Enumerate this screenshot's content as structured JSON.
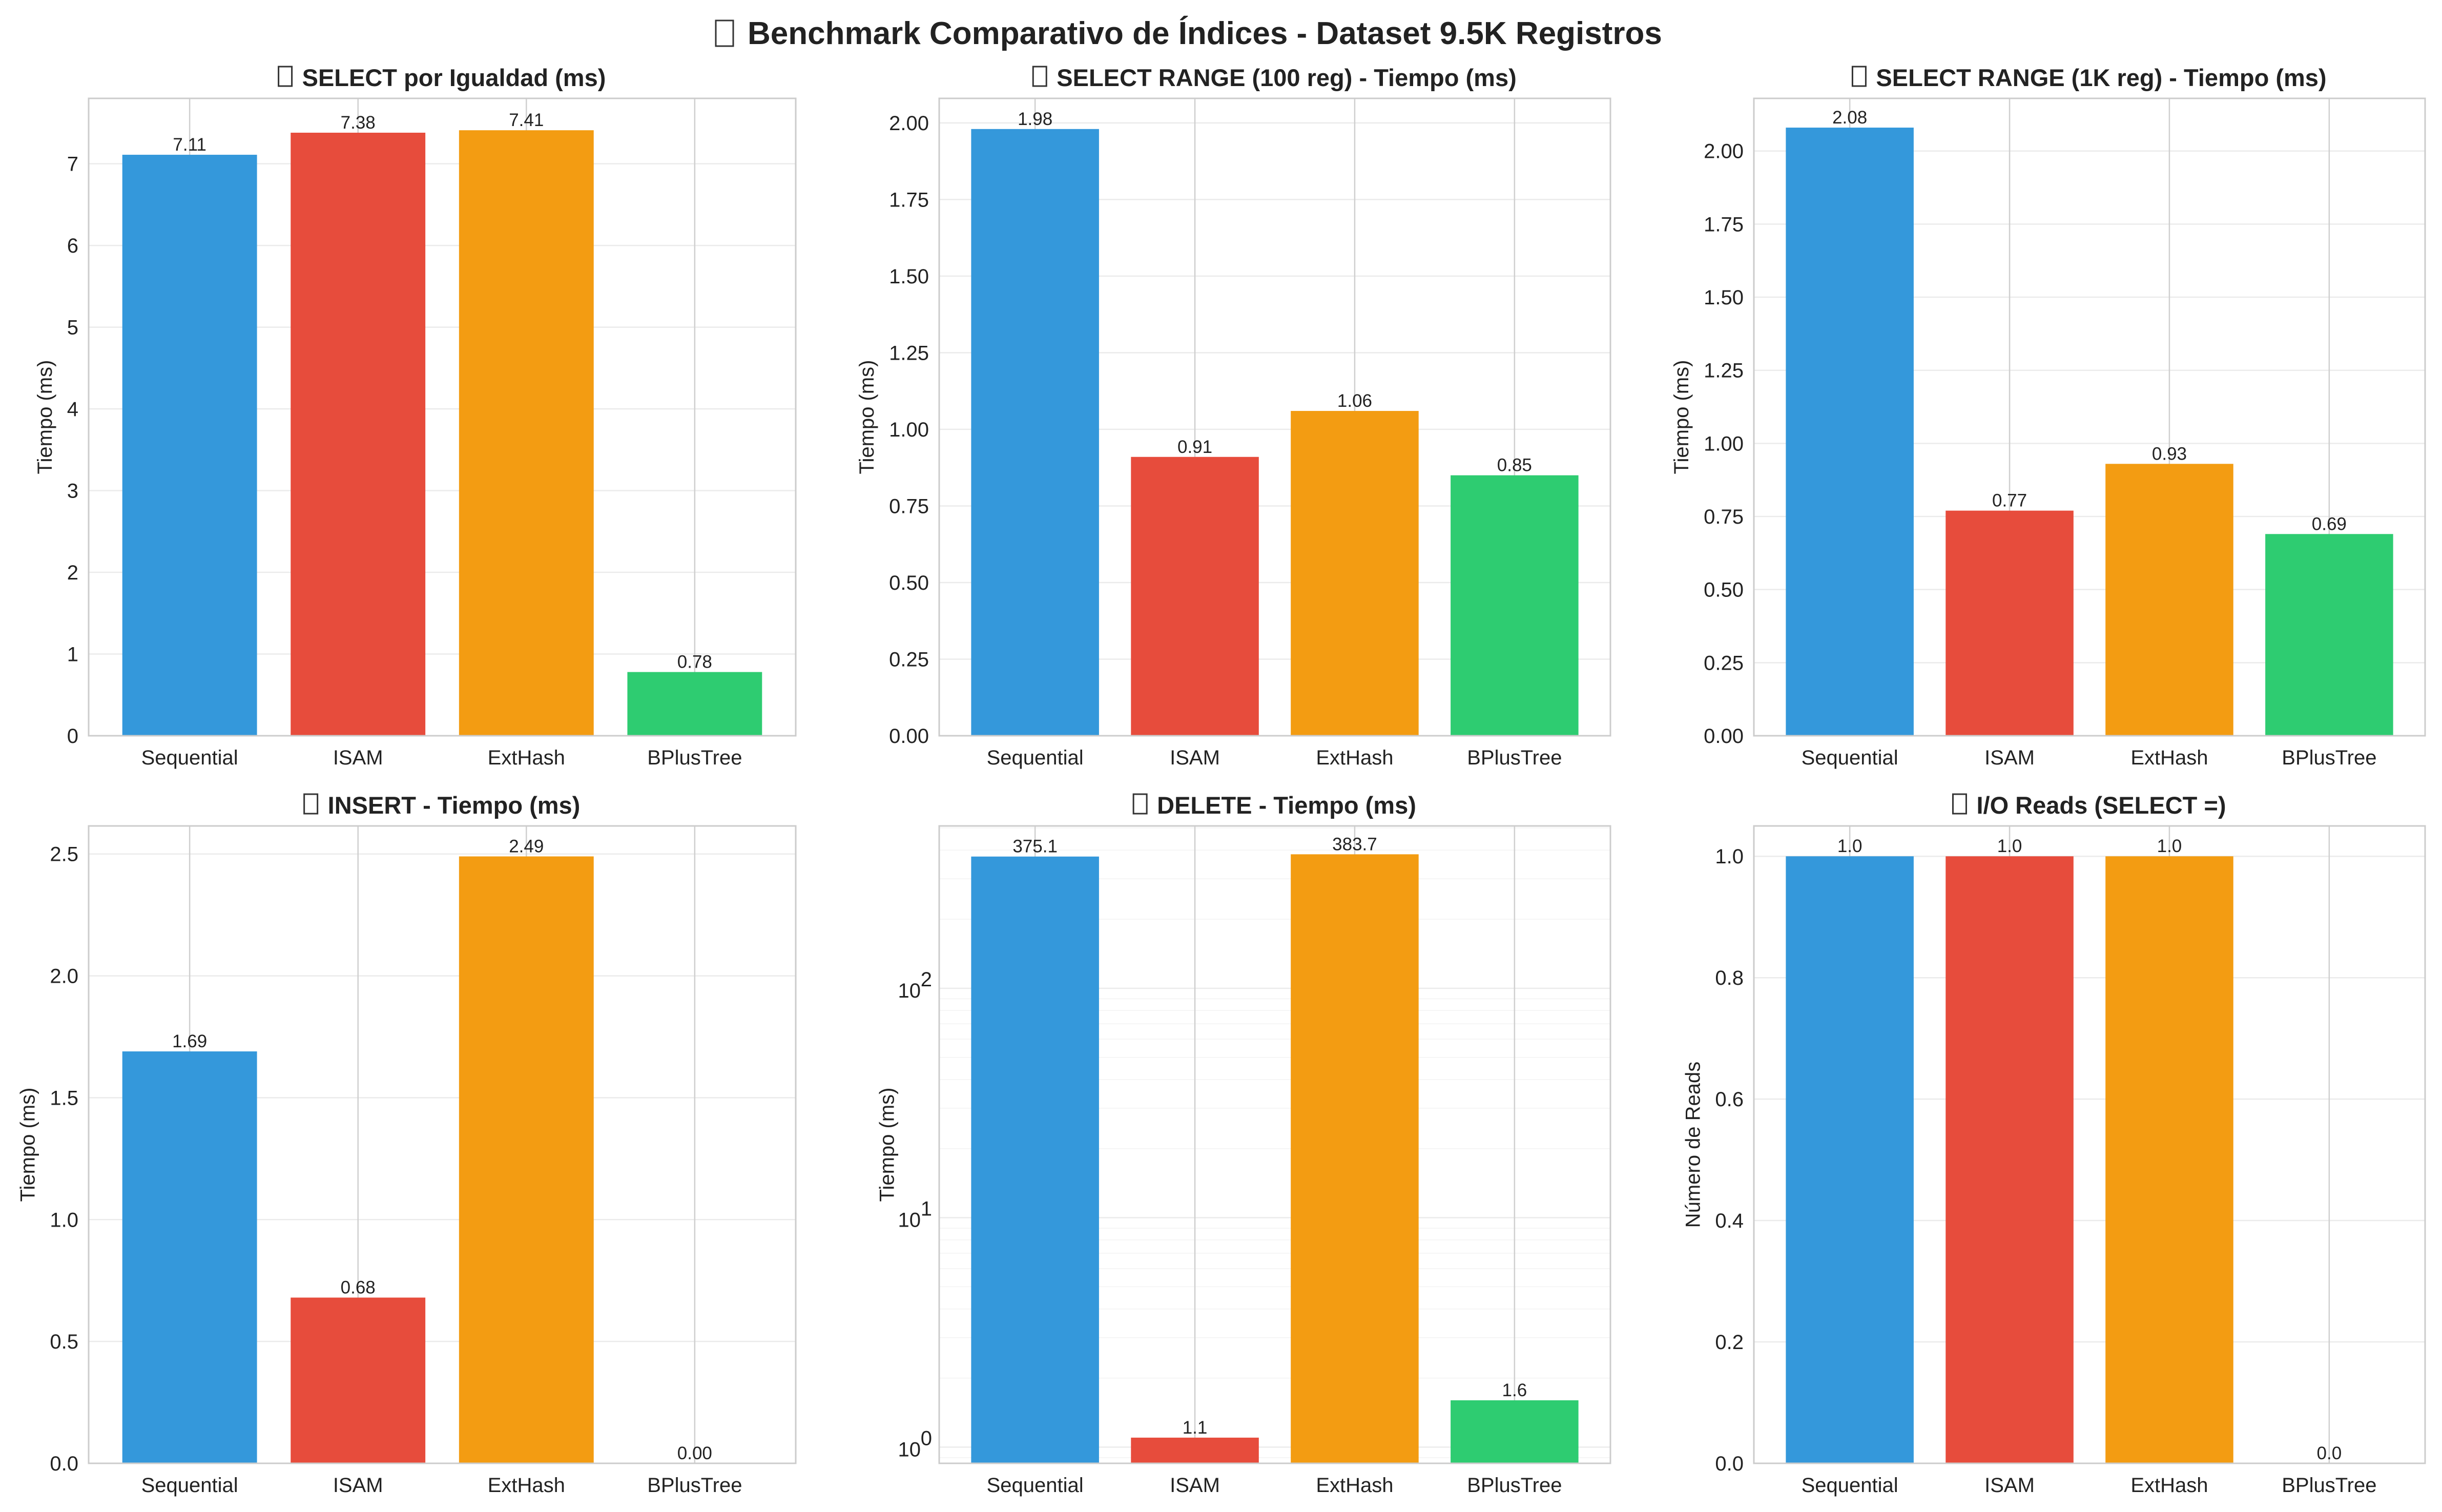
{
  "title": "Benchmark Comparativo de Índices - Dataset 9.5K Registros",
  "colors": {
    "Sequential": "#3498db",
    "ISAM": "#e74c3c",
    "ExtHash": "#f39c12",
    "BPlusTree": "#2ecc71"
  },
  "chart_data": [
    {
      "type": "bar",
      "title": "SELECT por Igualdad (ms)",
      "title_icon": "missing-glyph-icon",
      "categories": [
        "Sequential",
        "ISAM",
        "ExtHash",
        "BPlusTree"
      ],
      "values": [
        7.11,
        7.38,
        7.41,
        0.78
      ],
      "value_labels": [
        "7.11",
        "7.38",
        "7.41",
        "0.78"
      ],
      "ylabel": "Tiempo (ms)",
      "ylim": [
        0,
        7.8
      ],
      "yticks": [
        0,
        1,
        2,
        3,
        4,
        5,
        6,
        7
      ],
      "ytick_labels": [
        "0",
        "1",
        "2",
        "3",
        "4",
        "5",
        "6",
        "7"
      ],
      "scale": "linear",
      "grid": true
    },
    {
      "type": "bar",
      "title": "SELECT RANGE (100 reg) - Tiempo (ms)",
      "title_icon": "missing-glyph-icon",
      "categories": [
        "Sequential",
        "ISAM",
        "ExtHash",
        "BPlusTree"
      ],
      "values": [
        1.98,
        0.91,
        1.06,
        0.85
      ],
      "value_labels": [
        "1.98",
        "0.91",
        "1.06",
        "0.85"
      ],
      "ylabel": "Tiempo (ms)",
      "ylim": [
        0,
        2.08
      ],
      "yticks": [
        0,
        0.25,
        0.5,
        0.75,
        1.0,
        1.25,
        1.5,
        1.75,
        2.0
      ],
      "ytick_labels": [
        "0.00",
        "0.25",
        "0.50",
        "0.75",
        "1.00",
        "1.25",
        "1.50",
        "1.75",
        "2.00"
      ],
      "scale": "linear",
      "grid": true
    },
    {
      "type": "bar",
      "title": "SELECT RANGE (1K reg) - Tiempo (ms)",
      "title_icon": "missing-glyph-icon",
      "categories": [
        "Sequential",
        "ISAM",
        "ExtHash",
        "BPlusTree"
      ],
      "values": [
        2.08,
        0.77,
        0.93,
        0.69
      ],
      "value_labels": [
        "2.08",
        "0.77",
        "0.93",
        "0.69"
      ],
      "ylabel": "Tiempo (ms)",
      "ylim": [
        0,
        2.18
      ],
      "yticks": [
        0,
        0.25,
        0.5,
        0.75,
        1.0,
        1.25,
        1.5,
        1.75,
        2.0
      ],
      "ytick_labels": [
        "0.00",
        "0.25",
        "0.50",
        "0.75",
        "1.00",
        "1.25",
        "1.50",
        "1.75",
        "2.00"
      ],
      "scale": "linear",
      "grid": true
    },
    {
      "type": "bar",
      "title": "INSERT - Tiempo (ms)",
      "title_icon": "missing-glyph-icon",
      "categories": [
        "Sequential",
        "ISAM",
        "ExtHash",
        "BPlusTree"
      ],
      "values": [
        1.69,
        0.68,
        2.49,
        0.0
      ],
      "value_labels": [
        "1.69",
        "0.68",
        "2.49",
        "0.00"
      ],
      "ylabel": "Tiempo (ms)",
      "ylim": [
        0,
        2.615
      ],
      "yticks": [
        0,
        0.5,
        1.0,
        1.5,
        2.0,
        2.5
      ],
      "ytick_labels": [
        "0.0",
        "0.5",
        "1.0",
        "1.5",
        "2.0",
        "2.5"
      ],
      "scale": "linear",
      "grid": true
    },
    {
      "type": "bar",
      "title": "DELETE - Tiempo (ms)",
      "title_icon": "missing-glyph-icon",
      "categories": [
        "Sequential",
        "ISAM",
        "ExtHash",
        "BPlusTree"
      ],
      "values": [
        375.1,
        1.1,
        383.7,
        1.6
      ],
      "value_labels": [
        "375.1",
        "1.1",
        "383.7",
        "1.6"
      ],
      "ylabel": "Tiempo (ms)",
      "ylim": [
        0.85,
        510
      ],
      "yticks": [
        1,
        10,
        100
      ],
      "ytick_labels": [
        "10^0",
        "10^1",
        "10^2"
      ],
      "scale": "log",
      "grid": true
    },
    {
      "type": "bar",
      "title": "I/O Reads (SELECT =)",
      "title_icon": "missing-glyph-icon",
      "categories": [
        "Sequential",
        "ISAM",
        "ExtHash",
        "BPlusTree"
      ],
      "values": [
        1.0,
        1.0,
        1.0,
        0.0
      ],
      "value_labels": [
        "1.0",
        "1.0",
        "1.0",
        "0.0"
      ],
      "ylabel": "Número de Reads",
      "ylim": [
        0,
        1.05
      ],
      "yticks": [
        0,
        0.2,
        0.4,
        0.6,
        0.8,
        1.0
      ],
      "ytick_labels": [
        "0.0",
        "0.2",
        "0.4",
        "0.6",
        "0.8",
        "1.0"
      ],
      "scale": "linear",
      "grid": true
    }
  ]
}
